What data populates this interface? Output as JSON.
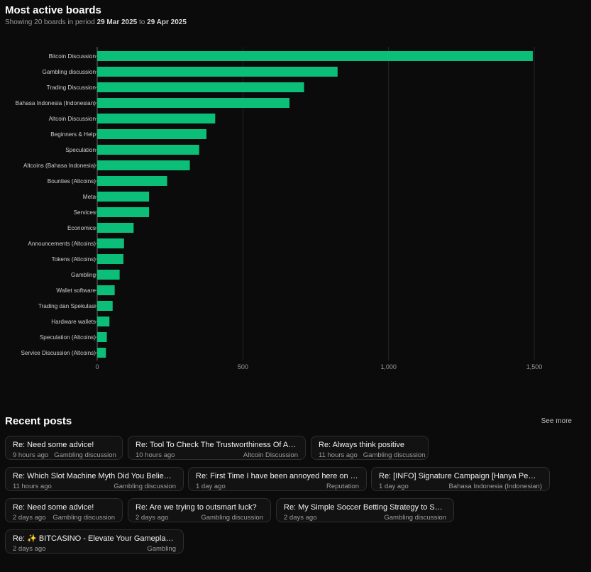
{
  "header": {
    "title": "Most active boards",
    "subtitle_prefix": "Showing 20 boards in period ",
    "period_start": "29 Mar 2025",
    "subtitle_mid": " to ",
    "period_end": "29 Apr 2025"
  },
  "chart_data": {
    "type": "bar",
    "orientation": "horizontal",
    "categories": [
      "Bitcoin Discussion",
      "Gambling discussion",
      "Trading Discussion",
      "Bahasa Indonesia (Indonesian)",
      "Altcoin Discussion",
      "Beginners & Help",
      "Speculation",
      "Altcoins (Bahasa Indonesia)",
      "Bounties (Altcoins)",
      "Meta",
      "Services",
      "Economics",
      "Announcements (Altcoins)",
      "Tokens (Altcoins)",
      "Gambling",
      "Wallet software",
      "Trading dan Spekulasi",
      "Hardware wallets",
      "Speculation (Altcoins)",
      "Service Discussion (Altcoins)"
    ],
    "values": [
      1495,
      825,
      710,
      660,
      405,
      375,
      350,
      318,
      240,
      178,
      178,
      125,
      92,
      90,
      77,
      60,
      53,
      42,
      33,
      30
    ],
    "xlim": [
      0,
      1700
    ],
    "xticks": [
      0,
      500,
      1000,
      1500
    ],
    "xtick_labels": [
      "0",
      "500",
      "1,000",
      "1,500"
    ],
    "grid": true,
    "bar_color": "#0cbf78"
  },
  "recent": {
    "title": "Recent posts",
    "see_more": "See more",
    "posts": [
      {
        "title": "Re: Need some advice!",
        "time": "9 hours ago",
        "board": "Gambling discussion"
      },
      {
        "title": "Re: Tool To Check The Trustworthiness Of A…",
        "time": "10 hours ago",
        "board": "Altcoin Discussion"
      },
      {
        "title": "Re: Always think positive",
        "time": "11 hours ago",
        "board": "Gambling discussion"
      },
      {
        "title": "Re: Which Slot Machine Myth Did You Belie…",
        "time": "11 hours ago",
        "board": "Gambling discussion"
      },
      {
        "title": "Re: First Time I have been annoyed here on …",
        "time": "1 day ago",
        "board": "Reputation"
      },
      {
        "title": "Re: [INFO] Signature Campaign [Hanya Pe…",
        "time": "1 day ago",
        "board": "Bahasa Indonesia (Indonesian)"
      },
      {
        "title": "Re: Need some advice!",
        "time": "2 days ago",
        "board": "Gambling discussion"
      },
      {
        "title": "Re: Are we trying to outsmart luck?",
        "time": "2 days ago",
        "board": "Gambling discussion"
      },
      {
        "title": "Re: My Simple Soccer Betting Strategy to S…",
        "time": "2 days ago",
        "board": "Gambling discussion"
      },
      {
        "title": "Re: ✨ BITCASINO - Elevate Your Gameplay…",
        "time": "2 days ago",
        "board": "Gambling"
      }
    ]
  }
}
